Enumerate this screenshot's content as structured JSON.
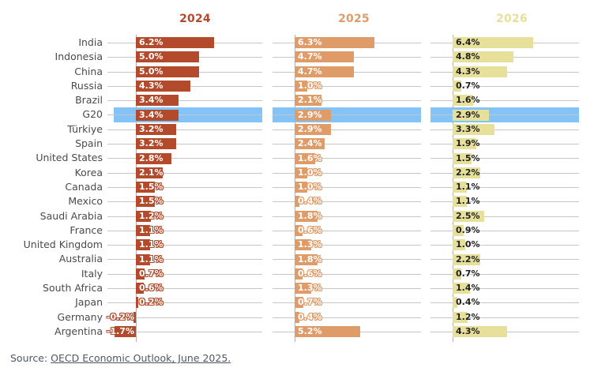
{
  "chart_data": {
    "type": "bar",
    "orientation": "horizontal",
    "title": "",
    "value_suffix": "%",
    "grid": true,
    "xlim": [
      -1.7,
      6.4
    ],
    "categories": [
      "India",
      "Indonesia",
      "China",
      "Russia",
      "Brazil",
      "G20",
      "Türkiye",
      "Spain",
      "United States",
      "Korea",
      "Canada",
      "Mexico",
      "Saudi Arabia",
      "France",
      "United Kingdom",
      "Australia",
      "Italy",
      "South Africa",
      "Japan",
      "Germany",
      "Argentina"
    ],
    "highlight_category": "G20",
    "highlight_color": "#84c3f7",
    "series": [
      {
        "name": "2024",
        "color": "#b34a2b",
        "label_color": "#ffffff",
        "label_outline": true,
        "values": [
          6.2,
          5.0,
          5.0,
          4.3,
          3.4,
          3.4,
          3.2,
          3.2,
          2.8,
          2.1,
          1.5,
          1.5,
          1.2,
          1.1,
          1.1,
          1.1,
          0.7,
          0.6,
          0.2,
          -0.2,
          -1.7
        ]
      },
      {
        "name": "2025",
        "color": "#df9c68",
        "label_color": "#ffffff",
        "label_outline": true,
        "values": [
          6.3,
          4.7,
          4.7,
          1.0,
          2.1,
          2.9,
          2.9,
          2.4,
          1.6,
          1.0,
          1.0,
          0.4,
          1.8,
          0.6,
          1.3,
          1.8,
          0.6,
          1.3,
          0.7,
          0.4,
          5.2
        ]
      },
      {
        "name": "2026",
        "color": "#e7e09b",
        "label_color": "#1f1f1f",
        "label_outline": false,
        "values": [
          6.4,
          4.8,
          4.3,
          0.7,
          1.6,
          2.9,
          3.3,
          1.9,
          1.5,
          2.2,
          1.1,
          1.1,
          2.5,
          0.9,
          1.0,
          2.2,
          0.7,
          1.4,
          0.4,
          1.2,
          4.3
        ]
      }
    ]
  },
  "source": {
    "prefix": "Source: ",
    "link_text": "OECD Economic Outlook, June 2025."
  }
}
